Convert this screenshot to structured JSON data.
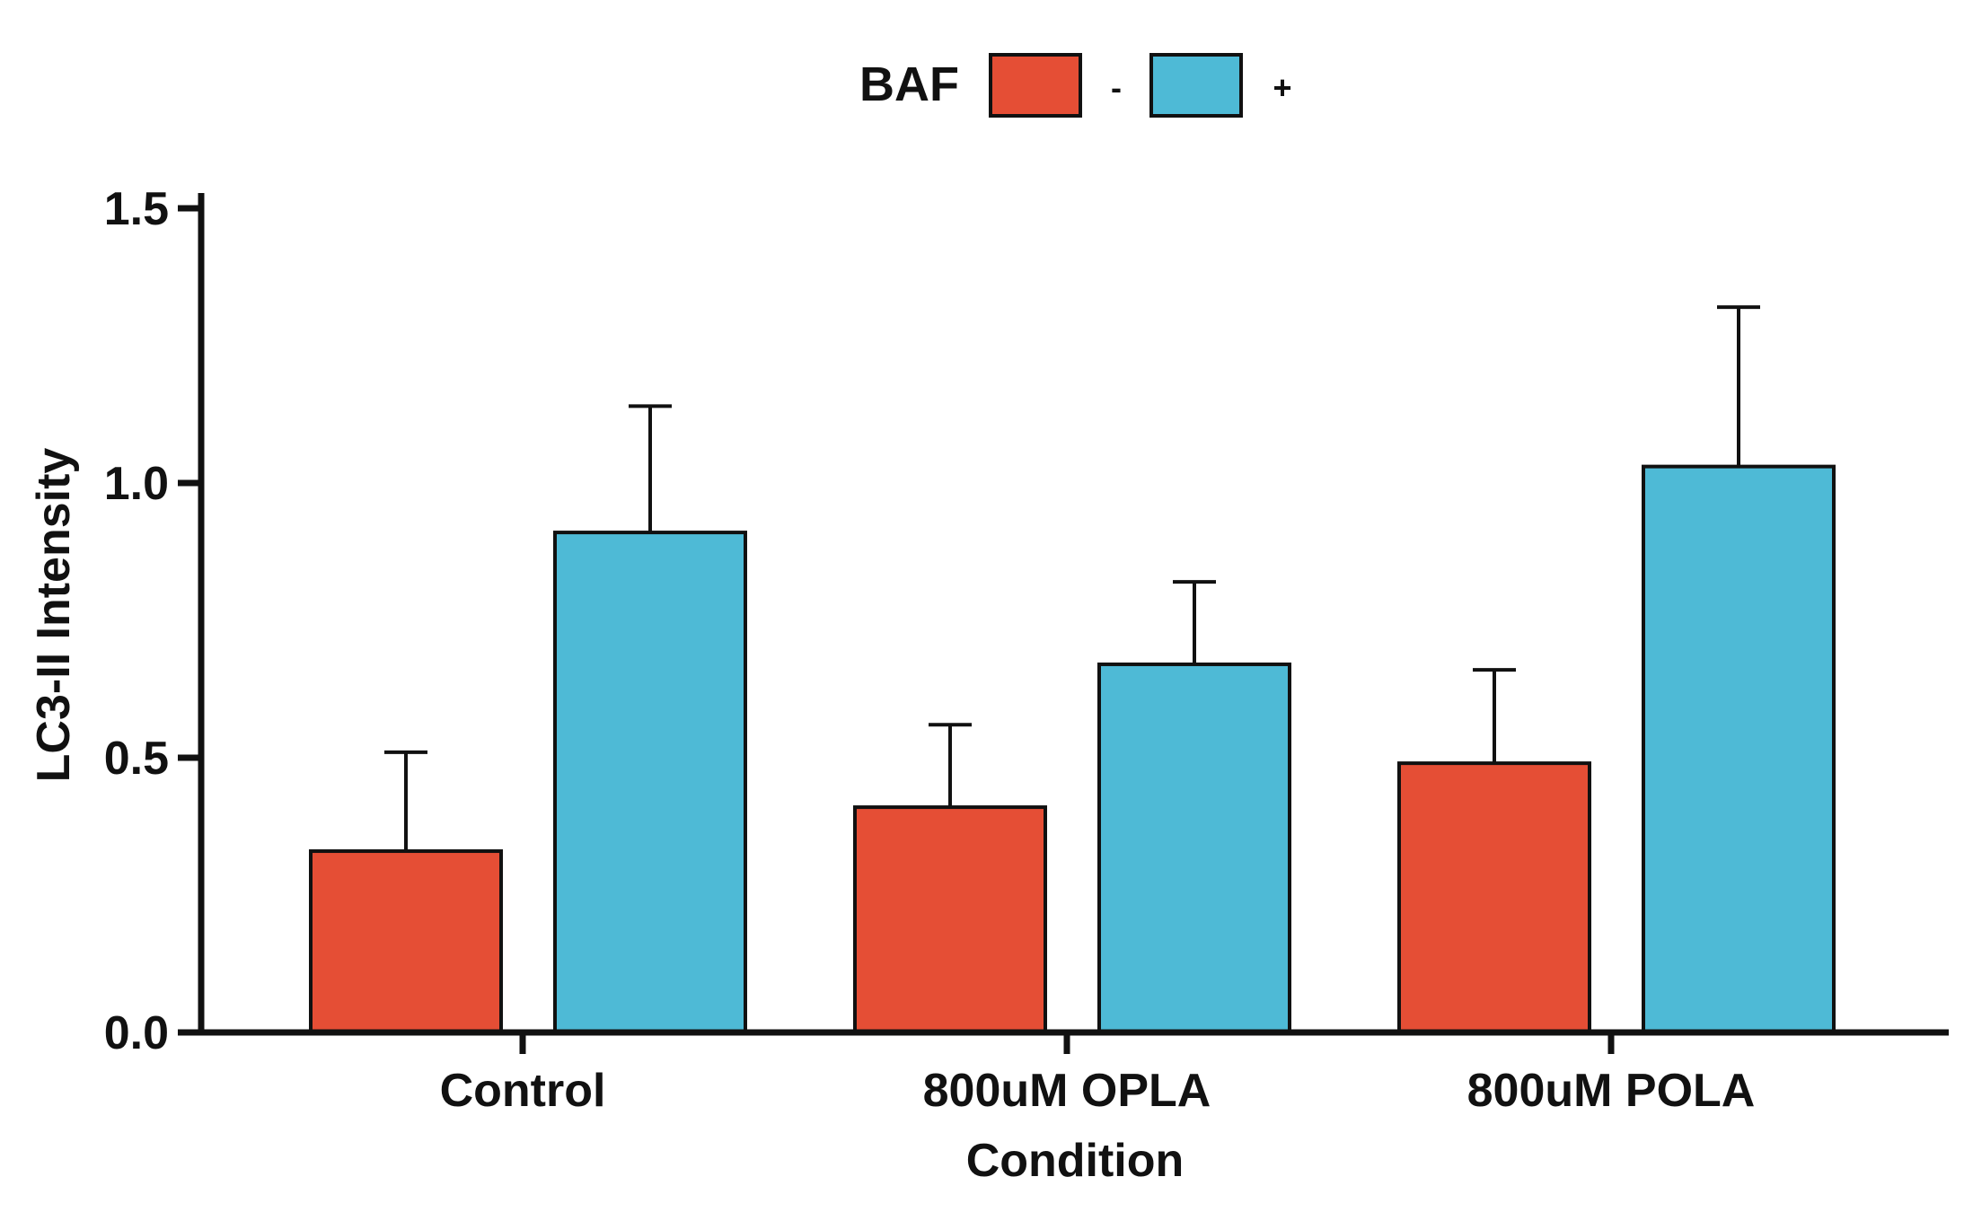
{
  "chart_data": {
    "type": "bar",
    "title": "",
    "xlabel": "Condition",
    "ylabel": "LC3-II Intensity",
    "ylim": [
      0,
      1.5
    ],
    "yticks": [
      "0.0",
      "0.5",
      "1.0",
      "1.5"
    ],
    "categories": [
      "Control",
      "800uM OPLA",
      "800uM POLA"
    ],
    "legend": {
      "title": "BAF",
      "placement": "top-center"
    },
    "series": [
      {
        "name": "-",
        "color": "#E54E35",
        "values": [
          0.33,
          0.41,
          0.49
        ],
        "error": [
          0.18,
          0.15,
          0.17
        ]
      },
      {
        "name": "+",
        "color": "#4EBAD6",
        "values": [
          0.91,
          0.67,
          1.03
        ],
        "error": [
          0.23,
          0.15,
          0.29
        ]
      }
    ],
    "grid": false
  }
}
